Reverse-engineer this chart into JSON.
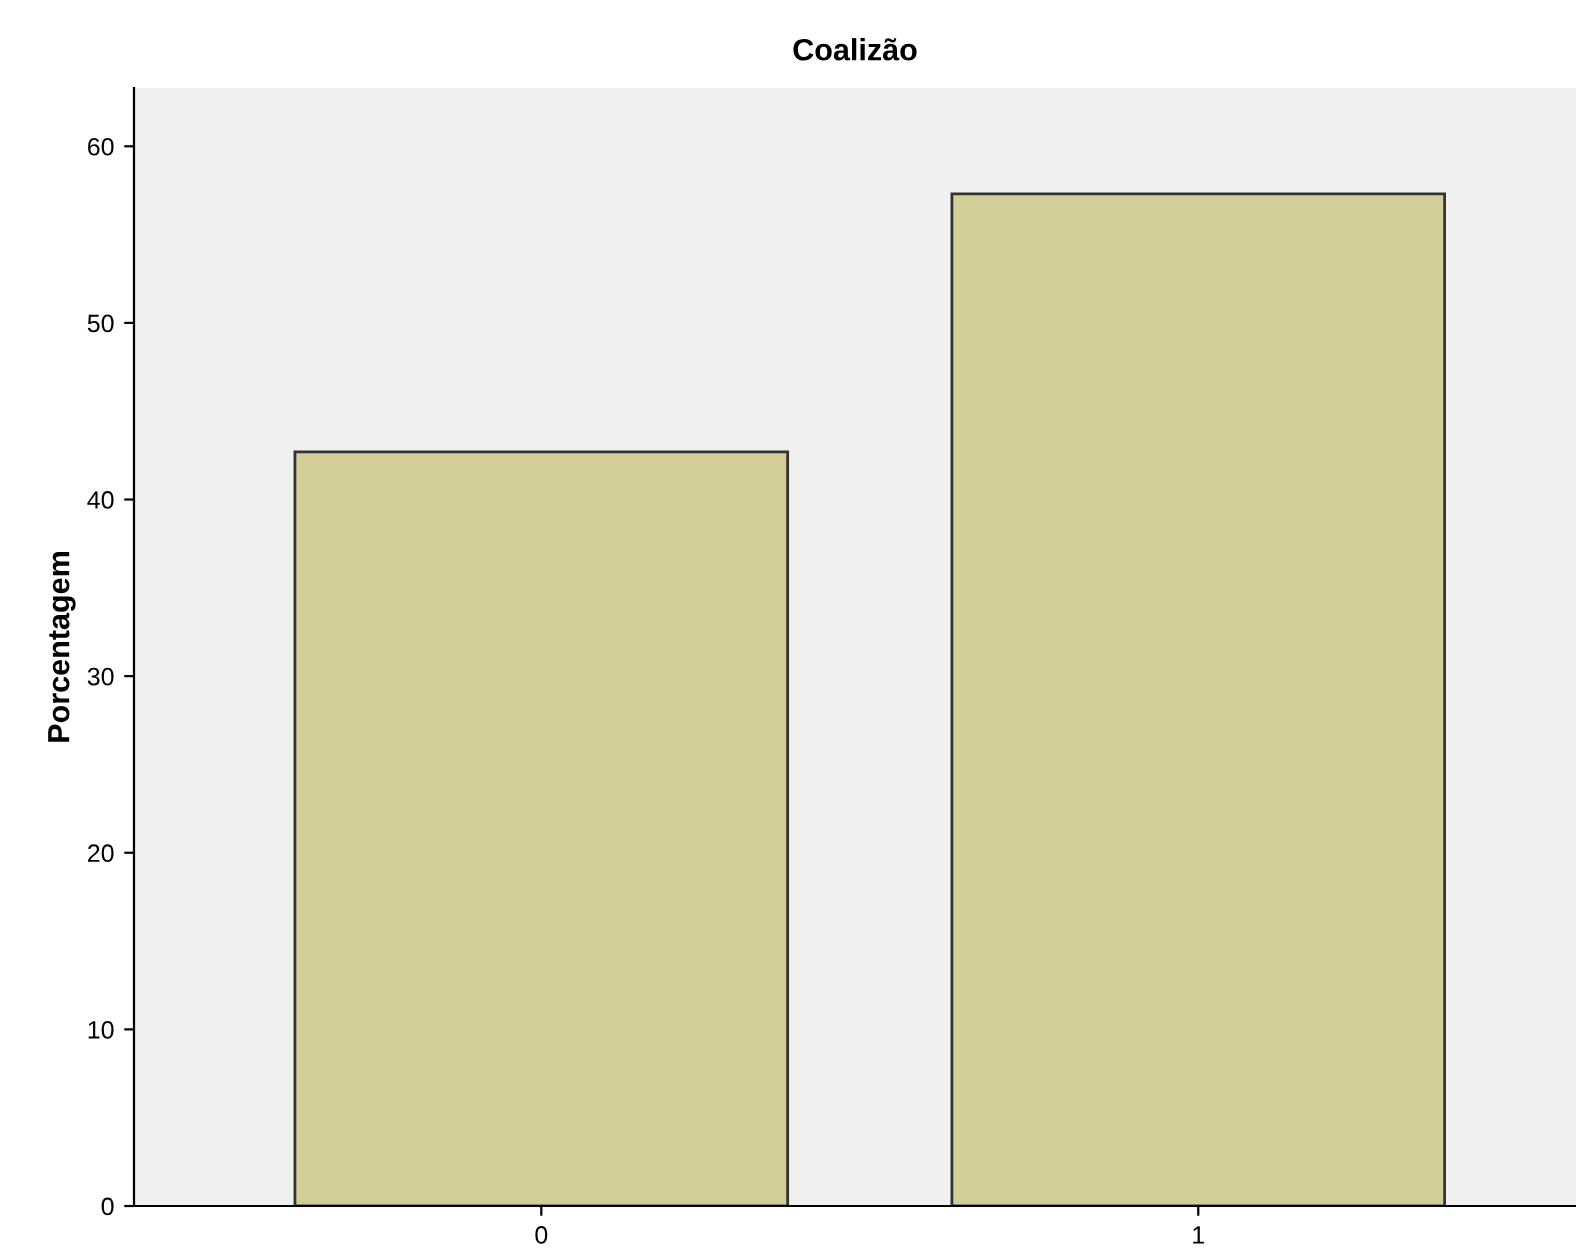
{
  "chart_data": {
    "type": "bar",
    "title": "Coalizão",
    "ylabel": "Porcentagem",
    "categories": [
      "0",
      "1"
    ],
    "values": [
      42.7,
      57.3
    ],
    "color": "#d3ce98",
    "ylim": [
      0,
      63.3
    ],
    "yticks": [
      0,
      10,
      20,
      30,
      40,
      50,
      60
    ],
    "grid": false
  }
}
